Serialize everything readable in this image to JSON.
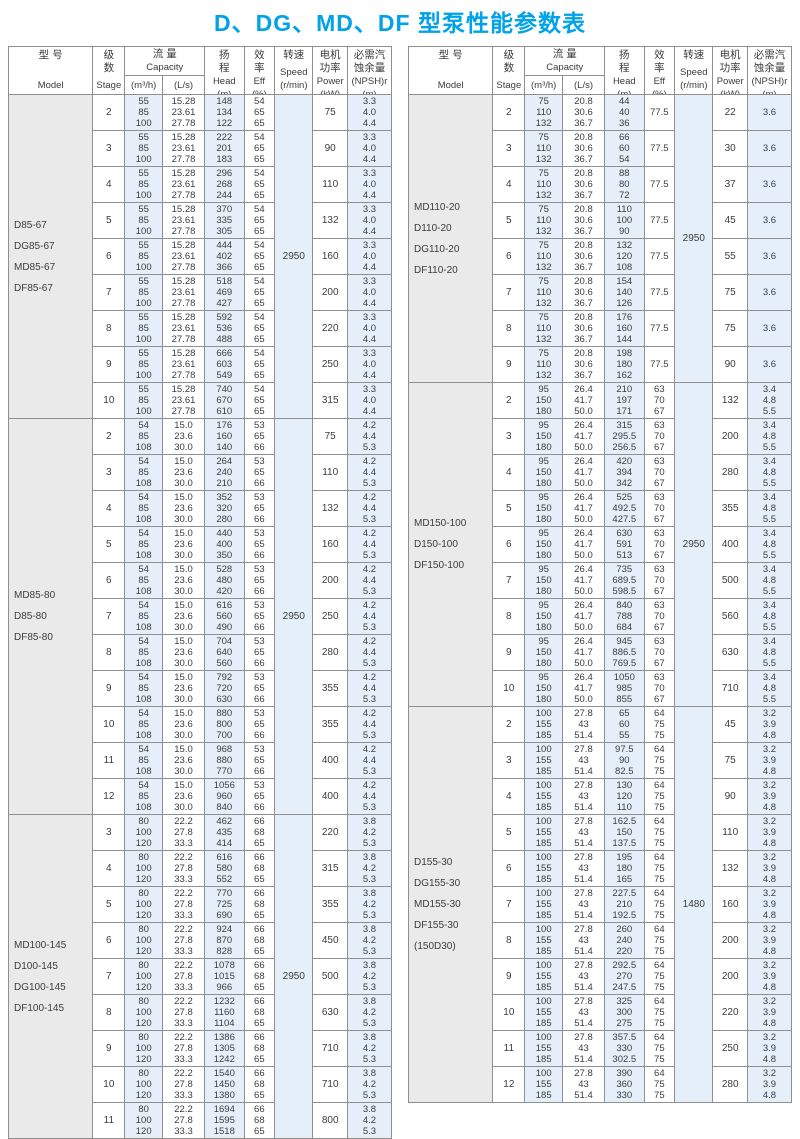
{
  "title": "D、DG、MD、DF 型泵性能参数表",
  "accent_color": "#00a2e8",
  "shade_blue": "#e4eff9",
  "shade_gray": "#eaeaea",
  "header": {
    "model": {
      "zh": [
        "型  号"
      ],
      "en": [
        "Model"
      ]
    },
    "stage": {
      "zh": [
        "级",
        "数"
      ],
      "en": [
        "Stage"
      ]
    },
    "capacity": {
      "zh": [
        "流  量"
      ],
      "en": [
        "Capacity"
      ],
      "sub": [
        "(m³/h)",
        "(L/s)"
      ]
    },
    "head": {
      "zh": [
        "扬",
        "程"
      ],
      "en": [
        "Head",
        "(m)"
      ]
    },
    "eff": {
      "zh": [
        "效",
        "率"
      ],
      "en": [
        "Eff",
        "(%)"
      ]
    },
    "speed": {
      "zh": [
        "转速"
      ],
      "en": [
        "Speed",
        "(r/min)"
      ]
    },
    "power": {
      "zh": [
        "电机",
        "功率"
      ],
      "en": [
        "Power",
        "(kW)"
      ]
    },
    "npsh": {
      "zh": [
        "必需汽",
        "蚀余量"
      ],
      "en": [
        "(NPSH)r",
        "(m)"
      ]
    }
  },
  "tables": [
    {
      "name": "left",
      "blocks": [
        {
          "models": [
            "D85-67",
            "DG85-67",
            "MD85-67",
            "DF85-67"
          ],
          "speed": "2950",
          "m3h": [
            "55",
            "85",
            "100"
          ],
          "ls": [
            "15.28",
            "23.61",
            "27.78"
          ],
          "eff": [
            "54",
            "65",
            "65"
          ],
          "npsh": [
            "3.3",
            "4.0",
            "4.4"
          ],
          "stages": [
            {
              "stage": "2",
              "head": [
                "148",
                "134",
                "122"
              ],
              "power": "75"
            },
            {
              "stage": "3",
              "head": [
                "222",
                "201",
                "183"
              ],
              "power": "90"
            },
            {
              "stage": "4",
              "head": [
                "296",
                "268",
                "244"
              ],
              "power": "110"
            },
            {
              "stage": "5",
              "head": [
                "370",
                "335",
                "305"
              ],
              "power": "132"
            },
            {
              "stage": "6",
              "head": [
                "444",
                "402",
                "366"
              ],
              "power": "160"
            },
            {
              "stage": "7",
              "head": [
                "518",
                "469",
                "427"
              ],
              "power": "200"
            },
            {
              "stage": "8",
              "head": [
                "592",
                "536",
                "488"
              ],
              "power": "220"
            },
            {
              "stage": "9",
              "head": [
                "666",
                "603",
                "549"
              ],
              "power": "250"
            },
            {
              "stage": "10",
              "head": [
                "740",
                "670",
                "610"
              ],
              "power": "315"
            }
          ]
        },
        {
          "models": [
            "MD85-80",
            "D85-80",
            "DF85-80"
          ],
          "speed": "2950",
          "m3h": [
            "54",
            "85",
            "108"
          ],
          "ls": [
            "15.0",
            "23.6",
            "30.0"
          ],
          "eff": [
            "53",
            "65",
            "66"
          ],
          "npsh": [
            "4.2",
            "4.4",
            "5.3"
          ],
          "stages": [
            {
              "stage": "2",
              "head": [
                "176",
                "160",
                "140"
              ],
              "power": "75"
            },
            {
              "stage": "3",
              "head": [
                "264",
                "240",
                "210"
              ],
              "power": "110"
            },
            {
              "stage": "4",
              "head": [
                "352",
                "320",
                "280"
              ],
              "power": "132"
            },
            {
              "stage": "5",
              "head": [
                "440",
                "400",
                "350"
              ],
              "power": "160"
            },
            {
              "stage": "6",
              "head": [
                "528",
                "480",
                "420"
              ],
              "power": "200"
            },
            {
              "stage": "7",
              "head": [
                "616",
                "560",
                "490"
              ],
              "power": "250"
            },
            {
              "stage": "8",
              "head": [
                "704",
                "640",
                "560"
              ],
              "power": "280"
            },
            {
              "stage": "9",
              "head": [
                "792",
                "720",
                "630"
              ],
              "power": "355"
            },
            {
              "stage": "10",
              "head": [
                "880",
                "800",
                "700"
              ],
              "power": "355"
            },
            {
              "stage": "11",
              "head": [
                "968",
                "880",
                "770"
              ],
              "power": "400"
            },
            {
              "stage": "12",
              "head": [
                "1056",
                "960",
                "840"
              ],
              "power": "400"
            }
          ]
        },
        {
          "models": [
            "MD100-145",
            "D100-145",
            "DG100-145",
            "DF100-145"
          ],
          "speed": "2950",
          "m3h": [
            "80",
            "100",
            "120"
          ],
          "ls": [
            "22.2",
            "27.8",
            "33.3"
          ],
          "eff": [
            "66",
            "68",
            "65"
          ],
          "npsh": [
            "3.8",
            "4.2",
            "5.3"
          ],
          "stages": [
            {
              "stage": "3",
              "head": [
                "462",
                "435",
                "414"
              ],
              "power": "220"
            },
            {
              "stage": "4",
              "head": [
                "616",
                "580",
                "552"
              ],
              "power": "315"
            },
            {
              "stage": "5",
              "head": [
                "770",
                "725",
                "690"
              ],
              "power": "355"
            },
            {
              "stage": "6",
              "head": [
                "924",
                "870",
                "828"
              ],
              "power": "450"
            },
            {
              "stage": "7",
              "head": [
                "1078",
                "1015",
                "966"
              ],
              "power": "500"
            },
            {
              "stage": "8",
              "head": [
                "1232",
                "1160",
                "1104"
              ],
              "power": "630"
            },
            {
              "stage": "9",
              "head": [
                "1386",
                "1305",
                "1242"
              ],
              "power": "710"
            },
            {
              "stage": "10",
              "head": [
                "1540",
                "1450",
                "1380"
              ],
              "power": "710"
            },
            {
              "stage": "11",
              "head": [
                "1694",
                "1595",
                "1518"
              ],
              "power": "800"
            }
          ]
        }
      ]
    },
    {
      "name": "right",
      "blocks": [
        {
          "models": [
            "MD110-20",
            "D110-20",
            "DG110-20",
            "DF110-20"
          ],
          "speed": "2950",
          "m3h": [
            "75",
            "110",
            "132"
          ],
          "ls": [
            "20.8",
            "30.6",
            "36.7"
          ],
          "eff": [
            "77.5"
          ],
          "npsh": [
            "3.6"
          ],
          "stages": [
            {
              "stage": "2",
              "head": [
                "44",
                "40",
                "36"
              ],
              "power": "22"
            },
            {
              "stage": "3",
              "head": [
                "66",
                "60",
                "54"
              ],
              "power": "30"
            },
            {
              "stage": "4",
              "head": [
                "88",
                "80",
                "72"
              ],
              "power": "37"
            },
            {
              "stage": "5",
              "head": [
                "110",
                "100",
                "90"
              ],
              "power": "45"
            },
            {
              "stage": "6",
              "head": [
                "132",
                "120",
                "108"
              ],
              "power": "55"
            },
            {
              "stage": "7",
              "head": [
                "154",
                "140",
                "126"
              ],
              "power": "75"
            },
            {
              "stage": "8",
              "head": [
                "176",
                "160",
                "144"
              ],
              "power": "75"
            },
            {
              "stage": "9",
              "head": [
                "198",
                "180",
                "162"
              ],
              "power": "90"
            }
          ]
        },
        {
          "models": [
            "MD150-100",
            "D150-100",
            "DF150-100"
          ],
          "speed": "2950",
          "m3h": [
            "95",
            "150",
            "180"
          ],
          "ls": [
            "26.4",
            "41.7",
            "50.0"
          ],
          "eff": [
            "63",
            "70",
            "67"
          ],
          "npsh": [
            "3.4",
            "4.8",
            "5.5"
          ],
          "stages": [
            {
              "stage": "2",
              "head": [
                "210",
                "197",
                "171"
              ],
              "power": "132"
            },
            {
              "stage": "3",
              "head": [
                "315",
                "295.5",
                "256.5"
              ],
              "power": "200"
            },
            {
              "stage": "4",
              "head": [
                "420",
                "394",
                "342"
              ],
              "power": "280"
            },
            {
              "stage": "5",
              "head": [
                "525",
                "492.5",
                "427.5"
              ],
              "power": "355"
            },
            {
              "stage": "6",
              "head": [
                "630",
                "591",
                "513"
              ],
              "power": "400"
            },
            {
              "stage": "7",
              "head": [
                "735",
                "689.5",
                "598.5"
              ],
              "power": "500"
            },
            {
              "stage": "8",
              "head": [
                "840",
                "788",
                "684"
              ],
              "power": "560"
            },
            {
              "stage": "9",
              "head": [
                "945",
                "886.5",
                "769.5"
              ],
              "power": "630"
            },
            {
              "stage": "10",
              "head": [
                "1050",
                "985",
                "855"
              ],
              "power": "710"
            }
          ]
        },
        {
          "models": [
            "D155-30",
            "DG155-30",
            "MD155-30",
            "DF155-30",
            "(150D30)"
          ],
          "speed": "1480",
          "m3h": [
            "100",
            "155",
            "185"
          ],
          "ls": [
            "27.8",
            "43",
            "51.4"
          ],
          "eff": [
            "64",
            "75",
            "75"
          ],
          "npsh": [
            "3.2",
            "3.9",
            "4.8"
          ],
          "stages": [
            {
              "stage": "2",
              "head": [
                "65",
                "60",
                "55"
              ],
              "power": "45"
            },
            {
              "stage": "3",
              "head": [
                "97.5",
                "90",
                "82.5"
              ],
              "power": "75"
            },
            {
              "stage": "4",
              "head": [
                "130",
                "120",
                "110"
              ],
              "power": "90"
            },
            {
              "stage": "5",
              "head": [
                "162.5",
                "150",
                "137.5"
              ],
              "power": "110"
            },
            {
              "stage": "6",
              "head": [
                "195",
                "180",
                "165"
              ],
              "power": "132"
            },
            {
              "stage": "7",
              "head": [
                "227.5",
                "210",
                "192.5"
              ],
              "power": "160"
            },
            {
              "stage": "8",
              "head": [
                "260",
                "240",
                "220"
              ],
              "power": "200"
            },
            {
              "stage": "9",
              "head": [
                "292.5",
                "270",
                "247.5"
              ],
              "power": "200"
            },
            {
              "stage": "10",
              "head": [
                "325",
                "300",
                "275"
              ],
              "power": "220"
            },
            {
              "stage": "11",
              "head": [
                "357.5",
                "330",
                "302.5"
              ],
              "power": "250"
            },
            {
              "stage": "12",
              "head": [
                "390",
                "360",
                "330"
              ],
              "power": "280"
            }
          ]
        }
      ]
    }
  ]
}
